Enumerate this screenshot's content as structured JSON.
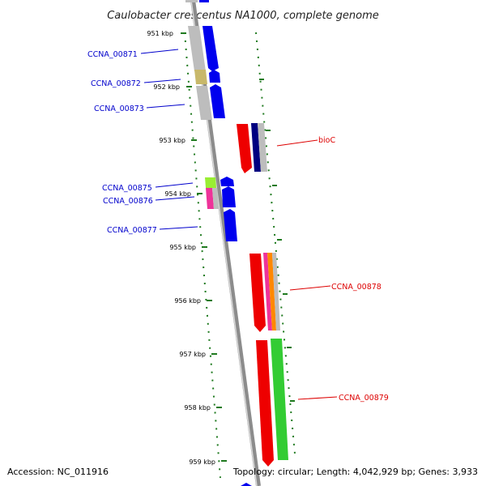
{
  "title": "Caulobacter crescentus NA1000, complete genome",
  "accession": "Accession: NC_011916",
  "topology": "Topology: circular; Length: 4,042,929 bp; Genes: 3,933",
  "scale_labels": [
    "951 kbp",
    "952 kbp",
    "953 kbp",
    "954 kbp",
    "955 kbp",
    "956 kbp",
    "957 kbp",
    "958 kbp",
    "959 kbp"
  ],
  "genes_left": [
    {
      "name": "CCNA_00871"
    },
    {
      "name": "CCNA_00872"
    },
    {
      "name": "CCNA_00873"
    },
    {
      "name": "CCNA_00875"
    },
    {
      "name": "CCNA_00876"
    },
    {
      "name": "CCNA_00877"
    }
  ],
  "genes_right": [
    {
      "name": "bioC"
    },
    {
      "name": "CCNA_00878"
    },
    {
      "name": "CCNA_00879"
    }
  ],
  "colors": {
    "backbone": "#8c8c8c",
    "tick": "#1f7a1f",
    "gene_blue": "#0000ee",
    "gene_red": "#ee0000",
    "gene_green": "#33cc33",
    "cog_gray": "#bdbdbd",
    "cog_olive": "#c8b86a",
    "cog_lime": "#99ee33",
    "cog_pink": "#ee3399",
    "cog_navy": "#000080",
    "cog_orange": "#ff8800",
    "left_label": "#0000cc",
    "right_label": "#dd0000"
  }
}
